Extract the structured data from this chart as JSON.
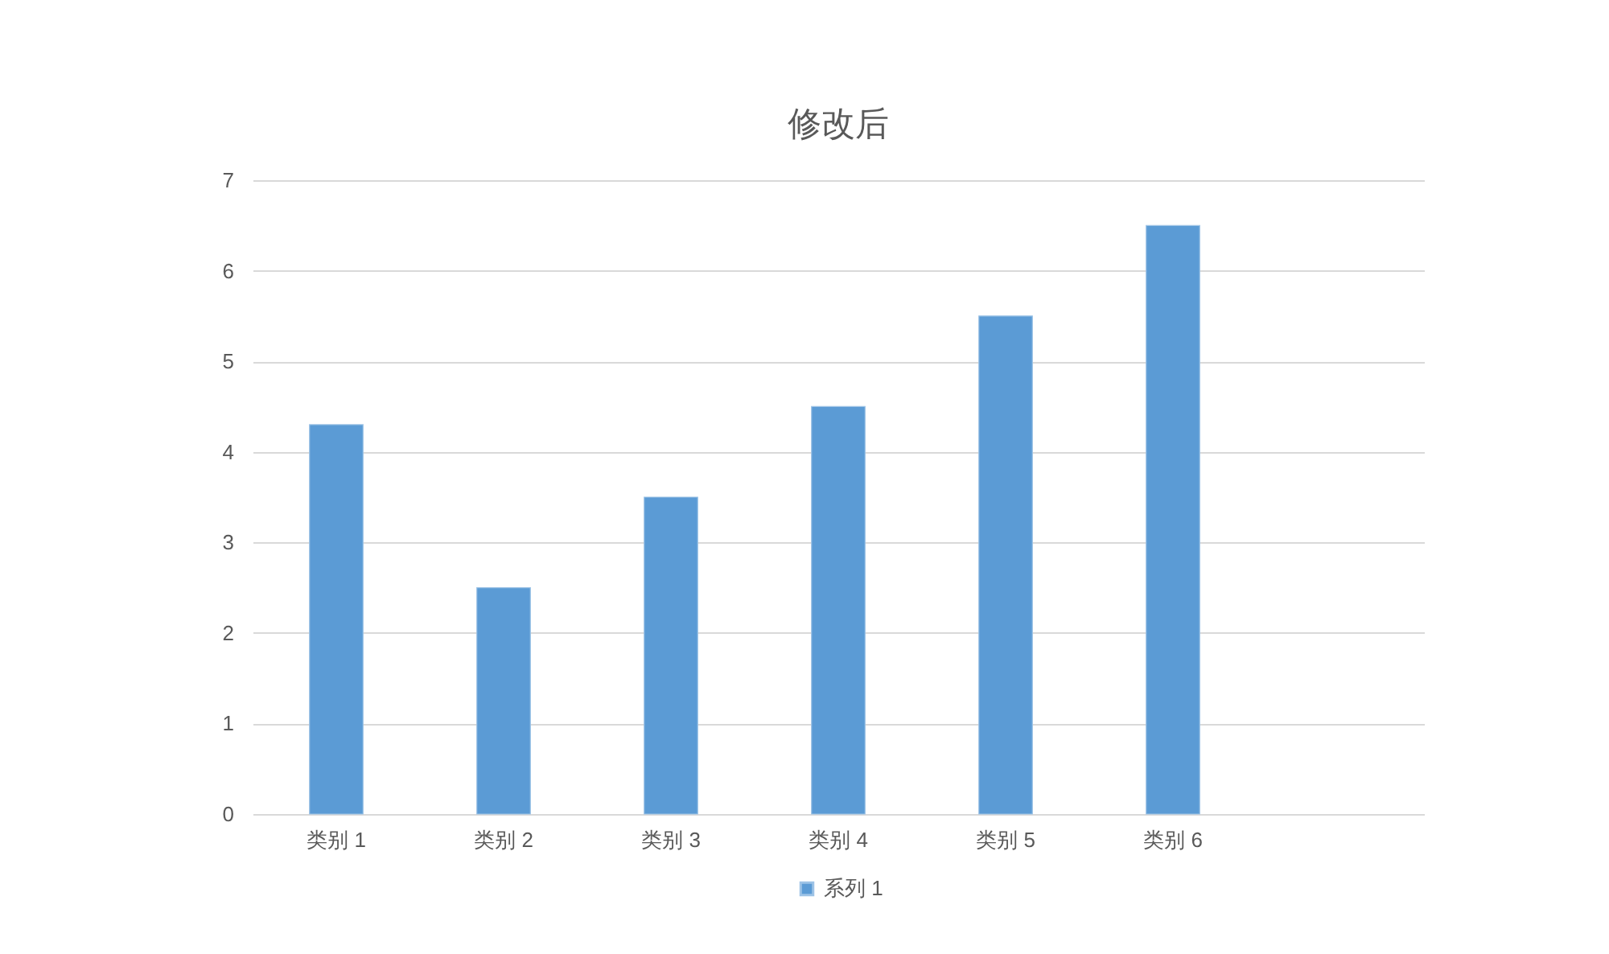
{
  "chart_data": {
    "type": "bar",
    "title": "修改后",
    "categories": [
      "类别 1",
      "类别 2",
      "类别 3",
      "类别 4",
      "类别 5",
      "类别 6",
      null
    ],
    "series": [
      {
        "name": "系列 1",
        "color": "#5b9bd5",
        "values": [
          4.3,
          2.5,
          3.5,
          4.5,
          5.5,
          6.5,
          null
        ]
      }
    ],
    "ylim": [
      0,
      7
    ],
    "yticks": [
      0,
      1,
      2,
      3,
      4,
      5,
      6,
      7
    ],
    "grid": "y",
    "legend": "bottom"
  }
}
